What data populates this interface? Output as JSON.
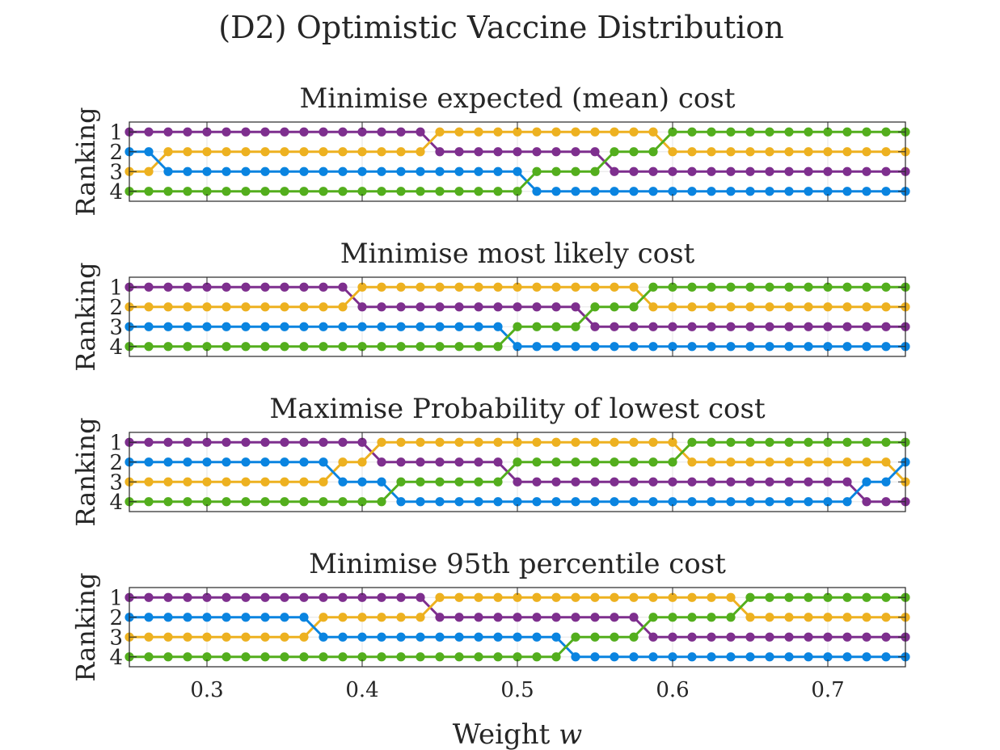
{
  "figure_title": "(D2) Optimistic Vaccine Distribution",
  "xlabel": "Weight ",
  "xlabel_var": "w",
  "colors": {
    "purple": "#7E2F8E",
    "yellow": "#EDB120",
    "blue": "#0A84E0",
    "green": "#53AE1D",
    "axis": "#262626",
    "grid": "#e6e6e6"
  },
  "chart_data": [
    {
      "type": "line",
      "title": "Minimise expected (mean) cost",
      "xlabel": "",
      "ylabel": "Ranking",
      "xlim": [
        0.25,
        0.75
      ],
      "ylim": [
        0.5,
        4.5
      ],
      "y_reversed": true,
      "xticks": [
        0.3,
        0.4,
        0.5,
        0.6,
        0.7
      ],
      "xticklabels": [],
      "yticks": [
        1,
        2,
        3,
        4
      ],
      "yticklabels": [
        "1",
        "2",
        "3",
        "4"
      ],
      "x": {
        "start": 0.25,
        "stop": 0.75,
        "step": 0.0125
      },
      "grid": true,
      "series": [
        {
          "color": "purple",
          "rank_segments": [
            [
              0.25,
              0.4375,
              1
            ],
            [
              0.45,
              0.55,
              2
            ],
            [
              0.5625,
              0.75,
              3
            ]
          ]
        },
        {
          "color": "yellow",
          "rank_segments": [
            [
              0.25,
              0.2625,
              3
            ],
            [
              0.275,
              0.4375,
              2
            ],
            [
              0.45,
              0.5875,
              1
            ],
            [
              0.6,
              0.75,
              2
            ]
          ]
        },
        {
          "color": "blue",
          "rank_segments": [
            [
              0.25,
              0.2625,
              2
            ],
            [
              0.275,
              0.5,
              3
            ],
            [
              0.5125,
              0.75,
              4
            ]
          ]
        },
        {
          "color": "green",
          "rank_segments": [
            [
              0.25,
              0.5,
              4
            ],
            [
              0.5125,
              0.55,
              3
            ],
            [
              0.5625,
              0.5875,
              2
            ],
            [
              0.6,
              0.75,
              1
            ]
          ]
        }
      ]
    },
    {
      "type": "line",
      "title": "Minimise most likely cost",
      "xlabel": "",
      "ylabel": "Ranking",
      "xlim": [
        0.25,
        0.75
      ],
      "ylim": [
        0.5,
        4.5
      ],
      "y_reversed": true,
      "xticks": [
        0.3,
        0.4,
        0.5,
        0.6,
        0.7
      ],
      "xticklabels": [],
      "yticks": [
        1,
        2,
        3,
        4
      ],
      "yticklabels": [
        "1",
        "2",
        "3",
        "4"
      ],
      "x": {
        "start": 0.25,
        "stop": 0.75,
        "step": 0.0125
      },
      "grid": true,
      "series": [
        {
          "color": "purple",
          "rank_segments": [
            [
              0.25,
              0.3875,
              1
            ],
            [
              0.4,
              0.5375,
              2
            ],
            [
              0.55,
              0.75,
              3
            ]
          ]
        },
        {
          "color": "yellow",
          "rank_segments": [
            [
              0.25,
              0.3875,
              2
            ],
            [
              0.4,
              0.575,
              1
            ],
            [
              0.5875,
              0.75,
              2
            ]
          ]
        },
        {
          "color": "blue",
          "rank_segments": [
            [
              0.25,
              0.4875,
              3
            ],
            [
              0.5,
              0.75,
              4
            ]
          ]
        },
        {
          "color": "green",
          "rank_segments": [
            [
              0.25,
              0.4875,
              4
            ],
            [
              0.5,
              0.5375,
              3
            ],
            [
              0.55,
              0.575,
              2
            ],
            [
              0.5875,
              0.75,
              1
            ]
          ]
        }
      ]
    },
    {
      "type": "line",
      "title": "Maximise Probability of lowest cost",
      "xlabel": "",
      "ylabel": "Ranking",
      "xlim": [
        0.25,
        0.75
      ],
      "ylim": [
        0.5,
        4.5
      ],
      "y_reversed": true,
      "xticks": [
        0.3,
        0.4,
        0.5,
        0.6,
        0.7
      ],
      "xticklabels": [],
      "yticks": [
        1,
        2,
        3,
        4
      ],
      "yticklabels": [
        "1",
        "2",
        "3",
        "4"
      ],
      "x": {
        "start": 0.25,
        "stop": 0.75,
        "step": 0.0125
      },
      "grid": true,
      "series": [
        {
          "color": "purple",
          "rank_segments": [
            [
              0.25,
              0.4,
              1
            ],
            [
              0.4125,
              0.4875,
              2
            ],
            [
              0.5,
              0.7125,
              3
            ],
            [
              0.725,
              0.75,
              4
            ]
          ]
        },
        {
          "color": "yellow",
          "rank_segments": [
            [
              0.25,
              0.375,
              3
            ],
            [
              0.3875,
              0.4,
              2
            ],
            [
              0.4125,
              0.6,
              1
            ],
            [
              0.6125,
              0.7375,
              2
            ],
            [
              0.75,
              0.75,
              3
            ]
          ]
        },
        {
          "color": "blue",
          "rank_segments": [
            [
              0.25,
              0.375,
              2
            ],
            [
              0.3875,
              0.4125,
              3
            ],
            [
              0.425,
              0.7125,
              4
            ],
            [
              0.725,
              0.7375,
              3
            ],
            [
              0.75,
              0.75,
              2
            ]
          ]
        },
        {
          "color": "green",
          "rank_segments": [
            [
              0.25,
              0.4125,
              4
            ],
            [
              0.425,
              0.4875,
              3
            ],
            [
              0.5,
              0.6,
              2
            ],
            [
              0.6125,
              0.75,
              1
            ]
          ]
        }
      ]
    },
    {
      "type": "line",
      "title": "Minimise 95th percentile cost",
      "xlabel": "Weight w",
      "ylabel": "Ranking",
      "xlim": [
        0.25,
        0.75
      ],
      "ylim": [
        0.5,
        4.5
      ],
      "y_reversed": true,
      "xticks": [
        0.3,
        0.4,
        0.5,
        0.6,
        0.7
      ],
      "xticklabels": [
        "0.3",
        "0.4",
        "0.5",
        "0.6",
        "0.7"
      ],
      "yticks": [
        1,
        2,
        3,
        4
      ],
      "yticklabels": [
        "1",
        "2",
        "3",
        "4"
      ],
      "x": {
        "start": 0.25,
        "stop": 0.75,
        "step": 0.0125
      },
      "grid": true,
      "series": [
        {
          "color": "purple",
          "rank_segments": [
            [
              0.25,
              0.4375,
              1
            ],
            [
              0.45,
              0.575,
              2
            ],
            [
              0.5875,
              0.75,
              3
            ]
          ]
        },
        {
          "color": "yellow",
          "rank_segments": [
            [
              0.25,
              0.3625,
              3
            ],
            [
              0.375,
              0.4375,
              2
            ],
            [
              0.45,
              0.6375,
              1
            ],
            [
              0.65,
              0.75,
              2
            ]
          ]
        },
        {
          "color": "blue",
          "rank_segments": [
            [
              0.25,
              0.3625,
              2
            ],
            [
              0.375,
              0.525,
              3
            ],
            [
              0.5375,
              0.75,
              4
            ]
          ]
        },
        {
          "color": "green",
          "rank_segments": [
            [
              0.25,
              0.525,
              4
            ],
            [
              0.5375,
              0.575,
              3
            ],
            [
              0.5875,
              0.6375,
              2
            ],
            [
              0.65,
              0.75,
              1
            ]
          ]
        }
      ]
    }
  ]
}
